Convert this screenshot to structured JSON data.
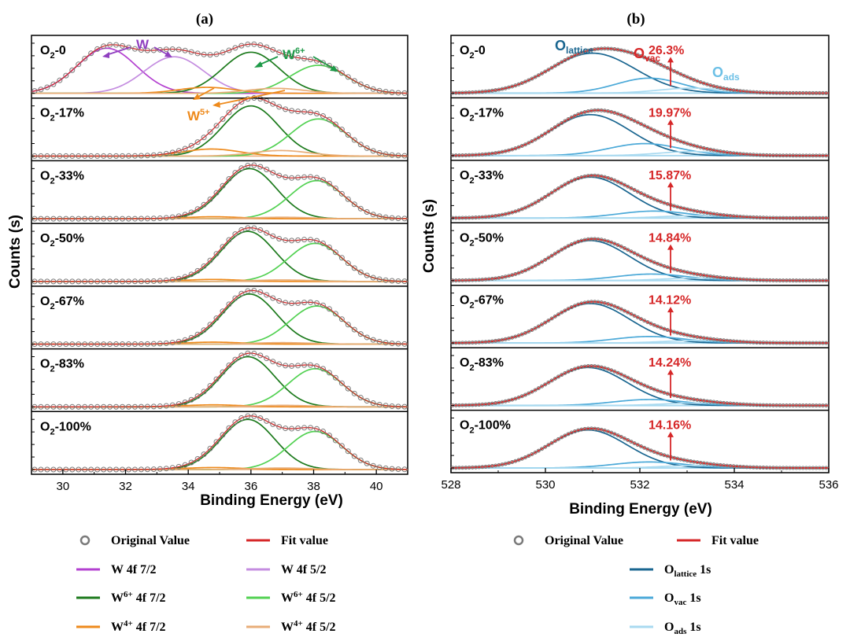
{
  "figure": {
    "title_a": "(a)",
    "title_b": "(b)"
  },
  "colors": {
    "data_marker": "#7a7a7a",
    "fit": "#d62728",
    "w_7_2": "#b340d0",
    "w_5_2": "#c48de0",
    "w6_7_2": "#1c7a1c",
    "w6_5_2": "#52d152",
    "w4_7_2": "#ee8a1c",
    "w4_5_2": "#e8ad78",
    "o_lattice": "#1a6690",
    "o_vac": "#4ba9d8",
    "o_ads": "#a9daf0",
    "w_annot": "#9040c0",
    "w6_annot": "#1e9a48",
    "w5_annot": "#ee8a1c",
    "pct_annot": "#d62728"
  },
  "chart_data": [
    {
      "id": "a",
      "type": "line",
      "title": "(a)",
      "xlabel": "Binding Energy (eV)",
      "ylabel": "Counts (s)",
      "xlim": [
        29,
        41
      ],
      "xticks": [
        30,
        32,
        34,
        36,
        38,
        40
      ],
      "grid": false,
      "panel_labels": [
        "O2-0",
        "O2-17%",
        "O2-33%",
        "O2-50%",
        "O2-67%",
        "O2-83%",
        "O2-100%"
      ],
      "peaks": [
        [
          {
            "comp": "w_7_2",
            "center": 31.4,
            "height": 0.9,
            "width": 0.95
          },
          {
            "comp": "w_5_2",
            "center": 33.55,
            "height": 0.73,
            "width": 0.95
          },
          {
            "comp": "w6_7_2",
            "center": 36.0,
            "height": 0.82,
            "width": 0.9
          },
          {
            "comp": "w6_5_2",
            "center": 38.15,
            "height": 0.56,
            "width": 0.9
          },
          {
            "comp": "w4_7_2",
            "center": 34.6,
            "height": 0.12,
            "width": 0.9
          },
          {
            "comp": "w4_5_2",
            "center": 36.8,
            "height": 0.1,
            "width": 0.9
          }
        ],
        [
          {
            "comp": "w6_7_2",
            "center": 36.0,
            "height": 1.0,
            "width": 0.88
          },
          {
            "comp": "w6_5_2",
            "center": 38.15,
            "height": 0.74,
            "width": 0.88
          },
          {
            "comp": "w4_7_2",
            "center": 34.75,
            "height": 0.14,
            "width": 0.9
          },
          {
            "comp": "w4_5_2",
            "center": 36.95,
            "height": 0.11,
            "width": 0.9
          }
        ],
        [
          {
            "comp": "w6_7_2",
            "center": 35.95,
            "height": 1.0,
            "width": 0.86
          },
          {
            "comp": "w6_5_2",
            "center": 38.1,
            "height": 0.76,
            "width": 0.86
          },
          {
            "comp": "w4_7_2",
            "center": 34.8,
            "height": 0.04,
            "width": 0.9
          },
          {
            "comp": "w4_5_2",
            "center": 37.0,
            "height": 0.03,
            "width": 0.9
          }
        ],
        [
          {
            "comp": "w6_7_2",
            "center": 35.9,
            "height": 1.0,
            "width": 0.86
          },
          {
            "comp": "w6_5_2",
            "center": 38.05,
            "height": 0.76,
            "width": 0.86
          },
          {
            "comp": "w4_7_2",
            "center": 34.8,
            "height": 0.04,
            "width": 0.9
          },
          {
            "comp": "w4_5_2",
            "center": 37.0,
            "height": 0.03,
            "width": 0.9
          }
        ],
        [
          {
            "comp": "w6_7_2",
            "center": 35.95,
            "height": 1.0,
            "width": 0.86
          },
          {
            "comp": "w6_5_2",
            "center": 38.1,
            "height": 0.76,
            "width": 0.86
          },
          {
            "comp": "w4_7_2",
            "center": 34.8,
            "height": 0.04,
            "width": 0.9
          },
          {
            "comp": "w4_5_2",
            "center": 37.0,
            "height": 0.03,
            "width": 0.9
          }
        ],
        [
          {
            "comp": "w6_7_2",
            "center": 35.9,
            "height": 1.0,
            "width": 0.86
          },
          {
            "comp": "w6_5_2",
            "center": 38.05,
            "height": 0.76,
            "width": 0.86
          },
          {
            "comp": "w4_7_2",
            "center": 34.8,
            "height": 0.04,
            "width": 0.9
          },
          {
            "comp": "w4_5_2",
            "center": 37.0,
            "height": 0.03,
            "width": 0.9
          }
        ],
        [
          {
            "comp": "w6_7_2",
            "center": 35.9,
            "height": 1.0,
            "width": 0.86
          },
          {
            "comp": "w6_5_2",
            "center": 38.05,
            "height": 0.76,
            "width": 0.86
          },
          {
            "comp": "w4_7_2",
            "center": 34.8,
            "height": 0.04,
            "width": 0.9
          },
          {
            "comp": "w4_5_2",
            "center": 37.0,
            "height": 0.03,
            "width": 0.9
          }
        ]
      ],
      "annotations": {
        "w": "W",
        "w6": "W",
        "w6_sup": "6+",
        "w5": "W",
        "w5_sup": "5+"
      }
    },
    {
      "id": "b",
      "type": "line",
      "title": "(b)",
      "xlabel": "Binding Energy (eV)",
      "ylabel": "Counts (s)",
      "xlim": [
        528,
        536
      ],
      "xticks": [
        528,
        530,
        532,
        534,
        536
      ],
      "grid": false,
      "panel_labels": [
        "O2-0",
        "O2-17%",
        "O2-33%",
        "O2-50%",
        "O2-67%",
        "O2-83%",
        "O2-100%"
      ],
      "vacancy_percent": [
        "26.3%",
        "19.97%",
        "15.87%",
        "14.84%",
        "14.12%",
        "14.24%",
        "14.16%"
      ],
      "peaks": [
        [
          {
            "comp": "o_lattice",
            "center": 531.0,
            "height": 0.8,
            "width": 0.9
          },
          {
            "comp": "o_vac",
            "center": 532.2,
            "height": 0.3,
            "width": 0.7
          },
          {
            "comp": "o_ads",
            "center": 533.1,
            "height": 0.1,
            "width": 0.7
          }
        ],
        [
          {
            "comp": "o_lattice",
            "center": 530.95,
            "height": 0.82,
            "width": 0.85
          },
          {
            "comp": "o_vac",
            "center": 532.1,
            "height": 0.24,
            "width": 0.75
          },
          {
            "comp": "o_ads",
            "center": 533.1,
            "height": 0.08,
            "width": 0.7
          }
        ],
        [
          {
            "comp": "o_lattice",
            "center": 530.95,
            "height": 0.82,
            "width": 0.83
          },
          {
            "comp": "o_vac",
            "center": 532.3,
            "height": 0.14,
            "width": 0.75
          },
          {
            "comp": "o_ads",
            "center": 533.2,
            "height": 0.05,
            "width": 0.7
          }
        ],
        [
          {
            "comp": "o_lattice",
            "center": 530.95,
            "height": 0.8,
            "width": 0.83
          },
          {
            "comp": "o_vac",
            "center": 532.25,
            "height": 0.13,
            "width": 0.75
          },
          {
            "comp": "o_ads",
            "center": 533.2,
            "height": 0.05,
            "width": 0.7
          }
        ],
        [
          {
            "comp": "o_lattice",
            "center": 530.95,
            "height": 0.79,
            "width": 0.83
          },
          {
            "comp": "o_vac",
            "center": 532.2,
            "height": 0.13,
            "width": 0.75
          },
          {
            "comp": "o_ads",
            "center": 533.2,
            "height": 0.05,
            "width": 0.7
          }
        ],
        [
          {
            "comp": "o_lattice",
            "center": 530.9,
            "height": 0.76,
            "width": 0.83
          },
          {
            "comp": "o_vac",
            "center": 532.2,
            "height": 0.12,
            "width": 0.75
          },
          {
            "comp": "o_ads",
            "center": 533.2,
            "height": 0.05,
            "width": 0.7
          }
        ],
        [
          {
            "comp": "o_lattice",
            "center": 530.9,
            "height": 0.76,
            "width": 0.83
          },
          {
            "comp": "o_vac",
            "center": 532.2,
            "height": 0.12,
            "width": 0.75
          },
          {
            "comp": "o_ads",
            "center": 533.2,
            "height": 0.05,
            "width": 0.7
          }
        ]
      ],
      "annotations": {
        "o_lattice": "O",
        "o_lattice_sub": "lattice",
        "o_vac": "O",
        "o_vac_sub": "vac",
        "o_ads": "O",
        "o_ads_sub": "ads"
      }
    }
  ],
  "legend_a": [
    {
      "key": "original",
      "label": "Original Value",
      "color": "#7a7a7a"
    },
    {
      "key": "fit",
      "label": "Fit value",
      "color": "#d62728"
    },
    {
      "key": "w_7_2",
      "label": "W 4f 7/2",
      "color": "#b340d0"
    },
    {
      "key": "w_5_2",
      "label": "W 4f 5/2",
      "color": "#c48de0"
    },
    {
      "key": "w6_7_2",
      "base": "W",
      "sup": "6+",
      "rest": " 4f 7/2",
      "color": "#1c7a1c"
    },
    {
      "key": "w6_5_2",
      "base": "W",
      "sup": "6+",
      "rest": " 4f 5/2",
      "color": "#52d152"
    },
    {
      "key": "w4_7_2",
      "base": "W",
      "sup": "4+",
      "rest": " 4f 7/2",
      "color": "#ee8a1c"
    },
    {
      "key": "w4_5_2",
      "base": "W",
      "sup": "4+",
      "rest": " 4f 5/2",
      "color": "#e8ad78"
    }
  ],
  "legend_b": [
    {
      "key": "original",
      "label": "Original Value",
      "color": "#7a7a7a"
    },
    {
      "key": "fit",
      "label": "Fit value",
      "color": "#d62728"
    },
    {
      "key": "o_lattice",
      "base": "O",
      "sub": "lattice",
      "rest": " 1s",
      "color": "#1a6690"
    },
    {
      "key": "o_vac",
      "base": "O",
      "sub": "vac",
      "rest": " 1s",
      "color": "#4ba9d8"
    },
    {
      "key": "o_ads",
      "base": "O",
      "sub": "ads",
      "rest": " 1s",
      "color": "#a9daf0"
    }
  ]
}
